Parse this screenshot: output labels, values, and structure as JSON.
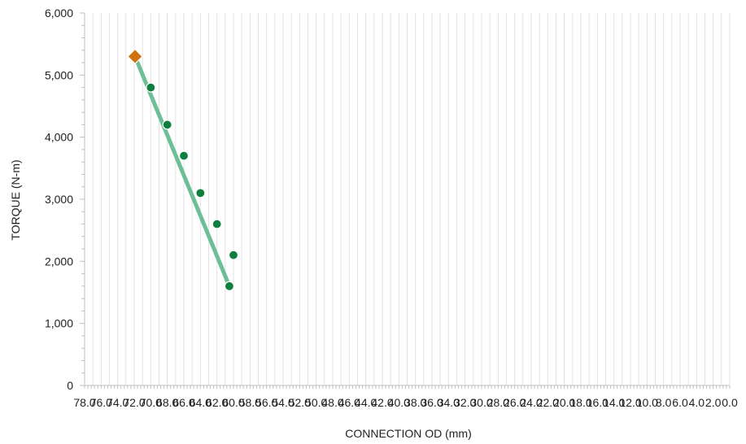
{
  "chart_data": {
    "type": "line",
    "title": "",
    "xlabel": "CONNECTION OD (mm)",
    "ylabel": "TORQUE (N-m)",
    "xlim": [
      78.0,
      0.0
    ],
    "x_reversed": true,
    "ylim": [
      0,
      6000
    ],
    "y_ticks": [
      0,
      1000,
      2000,
      3000,
      4000,
      5000,
      6000
    ],
    "y_tick_labels": [
      "0",
      "1,000",
      "2,000",
      "3,000",
      "4,000",
      "5,000",
      "6,000"
    ],
    "x_tick_labels": [
      "78.0",
      "76.0",
      "74.0",
      "72.0",
      "70.0",
      "68.0",
      "66.0",
      "64.0",
      "62.0",
      "60.0",
      "58.0",
      "56.0",
      "54.0",
      "52.0",
      "50.0",
      "48.0",
      "46.0",
      "44.0",
      "42.0",
      "40.0",
      "38.0",
      "36.0",
      "34.0",
      "32.0",
      "30.0",
      "28.0",
      "26.0",
      "24.0",
      "22.0",
      "20.0",
      "18.0",
      "16.0",
      "14.0",
      "12.0",
      "10.0",
      "8.0",
      "6.0",
      "4.0",
      "2.0",
      "0.0"
    ],
    "grid": "vertical",
    "legend": "none",
    "series": [
      {
        "kind": "line",
        "color": "#6dbf95",
        "marker": "none",
        "x": [
          71.9,
          60.5
        ],
        "y": [
          5300,
          1600
        ]
      },
      {
        "kind": "scatter",
        "color": "#0e7f3f",
        "marker": "circle",
        "x": [
          72.0,
          70.0,
          68.0,
          66.0,
          64.0,
          62.0,
          60.0
        ],
        "y": [
          5300,
          4800,
          4200,
          3700,
          3100,
          2600,
          2100
        ]
      },
      {
        "kind": "scatter",
        "color": "#0e7f3f",
        "marker": "circle",
        "x": [
          60.5
        ],
        "y": [
          1600
        ]
      },
      {
        "kind": "scatter",
        "color": "#d2720f",
        "marker": "diamond",
        "x": [
          71.9
        ],
        "y": [
          5300
        ]
      }
    ]
  }
}
